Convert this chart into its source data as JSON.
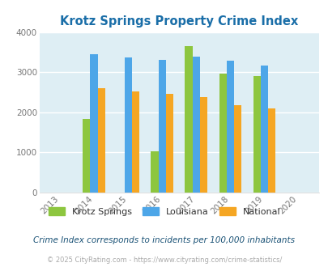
{
  "title": "Krotz Springs Property Crime Index",
  "years": [
    2013,
    2014,
    2015,
    2016,
    2017,
    2018,
    2019,
    2020
  ],
  "categories": [
    "Krotz Springs",
    "Louisiana",
    "National"
  ],
  "data": {
    "Krotz Springs": [
      null,
      1830,
      null,
      1020,
      3640,
      2960,
      2910,
      null
    ],
    "Louisiana": [
      null,
      3450,
      3360,
      3310,
      3380,
      3290,
      3160,
      null
    ],
    "National": [
      null,
      2600,
      2510,
      2460,
      2380,
      2175,
      2100,
      null
    ]
  },
  "colors": {
    "Krotz Springs": "#8dc63f",
    "Louisiana": "#4da6e8",
    "National": "#f5a623"
  },
  "ylim": [
    0,
    4000
  ],
  "yticks": [
    0,
    1000,
    2000,
    3000,
    4000
  ],
  "bg_color": "#deeef4",
  "title_color": "#1a6ea8",
  "legend_text_color": "#333333",
  "legend_note": "Crime Index corresponds to incidents per 100,000 inhabitants",
  "legend_note_color": "#1a5276",
  "footer": "© 2025 CityRating.com - https://www.cityrating.com/crime-statistics/",
  "footer_color": "#aaaaaa",
  "bar_width": 0.22,
  "figsize": [
    4.06,
    3.3
  ],
  "dpi": 100
}
